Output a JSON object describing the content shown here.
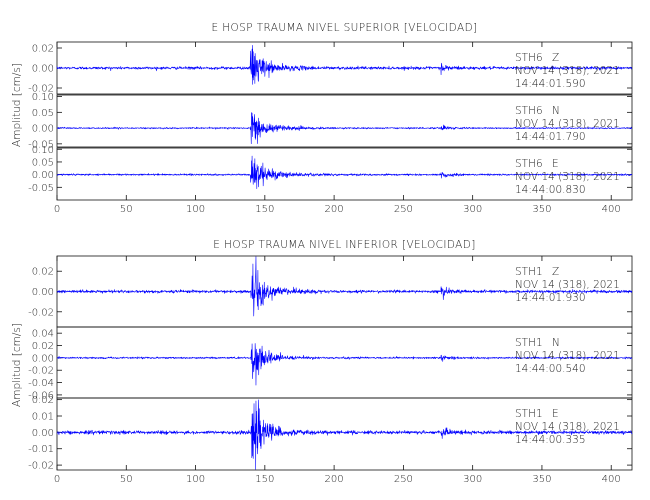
{
  "chart_data": [
    {
      "type": "line",
      "title": "E HOSP TRAUMA NIVEL SUPERIOR [VELOCIDAD]",
      "ylabel": "Amplitud [cm/s]",
      "xlabel": "",
      "xlim": [
        0,
        415
      ],
      "xticks": [
        0,
        50,
        100,
        150,
        200,
        250,
        300,
        350,
        400
      ],
      "grid": false,
      "line_color": "#0000ff",
      "traces": [
        {
          "station": "STH6",
          "component": "Z",
          "date": "NOV 14 (318), 2021",
          "time": "14:44:01.590",
          "ylim": [
            -0.026,
            0.026
          ],
          "yticks": [
            -0.02,
            0.0,
            0.02
          ],
          "ytick_labels": [
            "-0.02",
            "0.00",
            "0.02"
          ],
          "noise": 0.0012,
          "p_amp": 0.022,
          "t_p": 139.5,
          "p_decay": 5.5,
          "coda_amp": 0.007,
          "coda_decay": 16,
          "s2": 277,
          "s2_amp": 0.004,
          "s2_decay": 6
        },
        {
          "station": "STH6",
          "component": "N",
          "date": "NOV 14 (318), 2021",
          "time": "14:44:01.790",
          "ylim": [
            -0.06,
            0.105
          ],
          "yticks": [
            -0.05,
            0.0,
            0.05,
            0.1
          ],
          "ytick_labels": [
            "-0.05",
            "0.00",
            "0.05",
            "0.10"
          ],
          "noise": 0.002,
          "p_amp": 0.055,
          "t_p": 139.5,
          "p_decay": 5,
          "coda_amp": 0.02,
          "coda_decay": 18,
          "s2": 277,
          "s2_amp": 0.008,
          "s2_decay": 6
        },
        {
          "station": "STH6",
          "component": "E",
          "date": "NOV 14 (318), 2021",
          "time": "14:44:00.830",
          "ylim": [
            -0.1,
            0.105
          ],
          "yticks": [
            -0.05,
            0.0,
            0.05,
            0.1
          ],
          "ytick_labels": [
            "-0.05",
            "0.00",
            "0.05",
            "0.10"
          ],
          "noise": 0.003,
          "p_amp": 0.09,
          "t_p": 139.5,
          "p_decay": 5.5,
          "coda_amp": 0.025,
          "coda_decay": 18,
          "s2": 277,
          "s2_amp": 0.01,
          "s2_decay": 6
        }
      ],
      "xtick_labels": [
        "0",
        "50",
        "100",
        "150",
        "200",
        "250",
        "300",
        "350",
        "400"
      ]
    },
    {
      "type": "line",
      "title": "E HOSP TRAUMA NIVEL INFERIOR [VELOCIDAD]",
      "ylabel": "Amplitud [cm/s]",
      "xlabel": "",
      "xlim": [
        0,
        415
      ],
      "xticks": [
        0,
        50,
        100,
        150,
        200,
        250,
        300,
        350,
        400
      ],
      "grid": false,
      "line_color": "#0000ff",
      "traces": [
        {
          "station": "STH1",
          "component": "Z",
          "date": "NOV 14 (318), 2021",
          "time": "14:44:01.930",
          "ylim": [
            -0.035,
            0.035
          ],
          "yticks": [
            -0.02,
            0.0,
            0.02
          ],
          "ytick_labels": [
            "-0.02",
            "0.00",
            "0.02"
          ],
          "noise": 0.0012,
          "p_amp": 0.03,
          "t_p": 140,
          "p_decay": 5.5,
          "coda_amp": 0.008,
          "coda_decay": 15,
          "s2": 277,
          "s2_amp": 0.005,
          "s2_decay": 6
        },
        {
          "station": "STH1",
          "component": "N",
          "date": "NOV 14 (318), 2021",
          "time": "14:44:00.540",
          "ylim": [
            -0.065,
            0.05
          ],
          "yticks": [
            -0.06,
            -0.04,
            -0.02,
            0.0,
            0.02,
            0.04
          ],
          "ytick_labels": [
            "-0.06",
            "-0.04",
            "-0.02",
            "0.00",
            "0.02",
            "0.04"
          ],
          "noise": 0.0012,
          "p_amp": 0.045,
          "t_p": 140,
          "p_decay": 5,
          "coda_amp": 0.01,
          "coda_decay": 16,
          "s2": 277,
          "s2_amp": 0.004,
          "s2_decay": 6
        },
        {
          "station": "STH1",
          "component": "E",
          "date": "NOV 14 (318), 2021",
          "time": "14:44:00.335",
          "ylim": [
            -0.023,
            0.021
          ],
          "yticks": [
            -0.02,
            -0.01,
            0.0,
            0.01,
            0.02
          ],
          "ytick_labels": [
            "-0.02",
            "-0.01",
            "0.00",
            "0.01",
            "0.02"
          ],
          "noise": 0.0009,
          "p_amp": 0.02,
          "t_p": 140,
          "p_decay": 6,
          "coda_amp": 0.005,
          "coda_decay": 16,
          "s2": 277,
          "s2_amp": 0.003,
          "s2_decay": 6
        }
      ],
      "xtick_labels": [
        "0",
        "50",
        "100",
        "150",
        "200",
        "250",
        "300",
        "350",
        "400"
      ]
    }
  ]
}
